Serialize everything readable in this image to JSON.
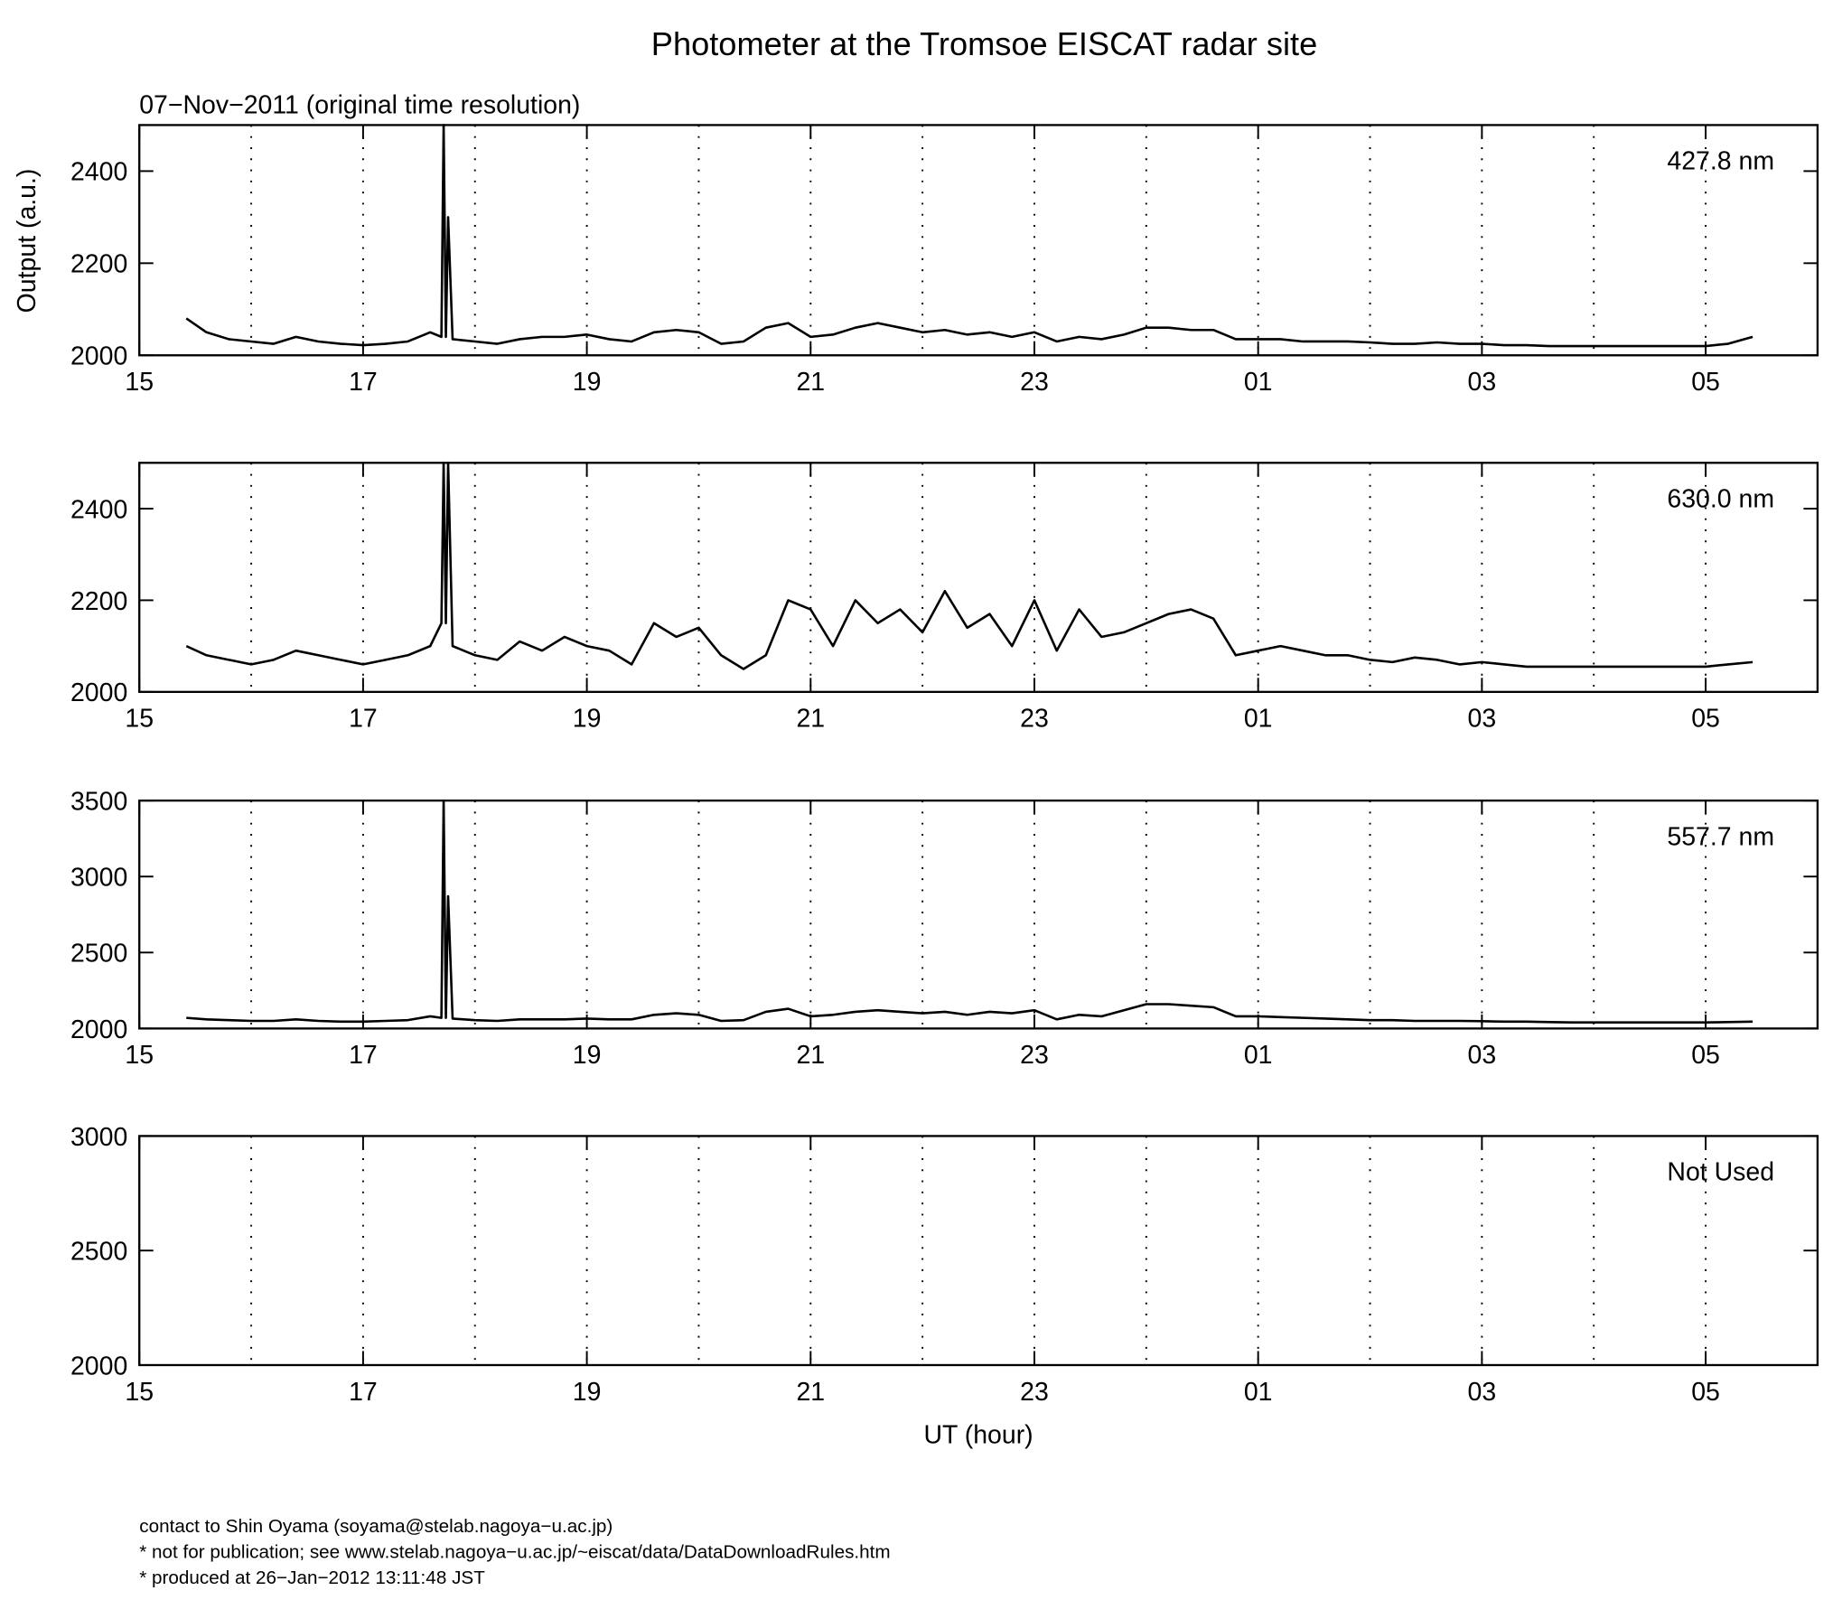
{
  "footer": [
    "contact to Shin Oyama (soyama@stelab.nagoya−u.ac.jp)",
    "* not for publication; see www.stelab.nagoya−u.ac.jp/~eiscat/data/DataDownloadRules.htm",
    "* produced at 26−Jan−2012 13:11:48 JST"
  ],
  "chart_data": [
    {
      "type": "line",
      "title": "Photometer at the Tromsoe EISCAT radar site",
      "subtitle": "07−Nov−2011 (original time resolution)",
      "ylabel": "Output (a.u.)",
      "annotation": "427.8 nm",
      "x": [
        15.42,
        15.6,
        15.8,
        16.0,
        16.2,
        16.4,
        16.6,
        16.8,
        17.0,
        17.2,
        17.4,
        17.6,
        17.7,
        17.72,
        17.74,
        17.76,
        17.8,
        18.0,
        18.2,
        18.4,
        18.6,
        18.8,
        19.0,
        19.2,
        19.4,
        19.6,
        19.8,
        20.0,
        20.2,
        20.4,
        20.6,
        20.8,
        21.0,
        21.2,
        21.4,
        21.6,
        21.8,
        22.0,
        22.2,
        22.4,
        22.6,
        22.8,
        23.0,
        23.2,
        23.4,
        23.6,
        23.8,
        24.0,
        24.2,
        24.4,
        24.6,
        24.8,
        25.0,
        25.2,
        25.4,
        25.6,
        25.8,
        26.0,
        26.2,
        26.4,
        26.6,
        26.8,
        27.0,
        27.2,
        27.4,
        27.6,
        27.8,
        28.0,
        28.2,
        28.4,
        28.6,
        28.8,
        29.0,
        29.2,
        29.42
      ],
      "series": [
        {
          "color": "#000000",
          "values": [
            2080,
            2050,
            2035,
            2030,
            2025,
            2040,
            2030,
            2025,
            2022,
            2025,
            2030,
            2050,
            2040,
            2500,
            2040,
            2300,
            2035,
            2030,
            2025,
            2035,
            2040,
            2040,
            2045,
            2035,
            2030,
            2050,
            2055,
            2050,
            2025,
            2030,
            2060,
            2070,
            2040,
            2045,
            2060,
            2070,
            2060,
            2050,
            2055,
            2045,
            2050,
            2040,
            2050,
            2030,
            2040,
            2035,
            2045,
            2060,
            2060,
            2055,
            2055,
            2035,
            2035,
            2035,
            2030,
            2030,
            2030,
            2028,
            2025,
            2025,
            2028,
            2025,
            2025,
            2022,
            2022,
            2020,
            2020,
            2020,
            2020,
            2020,
            2020,
            2020,
            2020,
            2025,
            2040
          ]
        }
      ],
      "xlim": [
        15,
        30
      ],
      "xticks": [
        15,
        17,
        19,
        21,
        23,
        {
          "value": 25,
          "label": "01"
        },
        {
          "value": 27,
          "label": "03"
        },
        {
          "value": 29,
          "label": "05"
        }
      ],
      "xgrid": [
        16,
        17,
        18,
        19,
        20,
        21,
        22,
        23,
        24,
        25,
        26,
        27,
        28,
        29
      ],
      "ylim": [
        2000,
        2500
      ],
      "yticks": [
        2000,
        2200,
        2400
      ]
    },
    {
      "type": "line",
      "annotation": "630.0 nm",
      "x": [
        15.42,
        15.6,
        15.8,
        16.0,
        16.2,
        16.4,
        16.6,
        16.8,
        17.0,
        17.2,
        17.4,
        17.6,
        17.7,
        17.72,
        17.74,
        17.76,
        17.8,
        18.0,
        18.2,
        18.4,
        18.6,
        18.8,
        19.0,
        19.2,
        19.4,
        19.6,
        19.8,
        20.0,
        20.2,
        20.4,
        20.6,
        20.8,
        21.0,
        21.2,
        21.4,
        21.6,
        21.8,
        22.0,
        22.2,
        22.4,
        22.6,
        22.8,
        23.0,
        23.2,
        23.4,
        23.6,
        23.8,
        24.0,
        24.2,
        24.4,
        24.6,
        24.8,
        25.0,
        25.2,
        25.4,
        25.6,
        25.8,
        26.0,
        26.2,
        26.4,
        26.6,
        26.8,
        27.0,
        27.2,
        27.4,
        27.6,
        27.8,
        28.0,
        28.2,
        28.4,
        28.6,
        28.8,
        29.0,
        29.2,
        29.42
      ],
      "series": [
        {
          "color": "#000000",
          "values": [
            2100,
            2080,
            2070,
            2060,
            2070,
            2090,
            2080,
            2070,
            2060,
            2070,
            2080,
            2100,
            2150,
            2500,
            2150,
            2500,
            2100,
            2080,
            2070,
            2110,
            2090,
            2120,
            2100,
            2090,
            2060,
            2150,
            2120,
            2140,
            2080,
            2050,
            2080,
            2200,
            2180,
            2100,
            2200,
            2150,
            2180,
            2130,
            2220,
            2140,
            2170,
            2100,
            2200,
            2090,
            2180,
            2120,
            2130,
            2150,
            2170,
            2180,
            2160,
            2080,
            2090,
            2100,
            2090,
            2080,
            2080,
            2070,
            2065,
            2075,
            2070,
            2060,
            2065,
            2060,
            2055,
            2055,
            2055,
            2055,
            2055,
            2055,
            2055,
            2055,
            2055,
            2060,
            2065
          ]
        }
      ],
      "xlim": [
        15,
        30
      ],
      "xticks": [
        15,
        17,
        19,
        21,
        23,
        {
          "value": 25,
          "label": "01"
        },
        {
          "value": 27,
          "label": "03"
        },
        {
          "value": 29,
          "label": "05"
        }
      ],
      "xgrid": [
        16,
        17,
        18,
        19,
        20,
        21,
        22,
        23,
        24,
        25,
        26,
        27,
        28,
        29
      ],
      "ylim": [
        2000,
        2500
      ],
      "yticks": [
        2000,
        2200,
        2400
      ]
    },
    {
      "type": "line",
      "annotation": "557.7 nm",
      "x": [
        15.42,
        15.6,
        15.8,
        16.0,
        16.2,
        16.4,
        16.6,
        16.8,
        17.0,
        17.2,
        17.4,
        17.6,
        17.7,
        17.72,
        17.74,
        17.76,
        17.8,
        18.0,
        18.2,
        18.4,
        18.6,
        18.8,
        19.0,
        19.2,
        19.4,
        19.6,
        19.8,
        20.0,
        20.2,
        20.4,
        20.6,
        20.8,
        21.0,
        21.2,
        21.4,
        21.6,
        21.8,
        22.0,
        22.2,
        22.4,
        22.6,
        22.8,
        23.0,
        23.2,
        23.4,
        23.6,
        23.8,
        24.0,
        24.2,
        24.4,
        24.6,
        24.8,
        25.0,
        25.2,
        25.4,
        25.6,
        25.8,
        26.0,
        26.2,
        26.4,
        26.6,
        26.8,
        27.0,
        27.2,
        27.4,
        27.6,
        27.8,
        28.0,
        28.2,
        28.4,
        28.6,
        28.8,
        29.0,
        29.2,
        29.42
      ],
      "series": [
        {
          "color": "#000000",
          "values": [
            2070,
            2060,
            2055,
            2050,
            2050,
            2060,
            2050,
            2045,
            2045,
            2050,
            2055,
            2080,
            2070,
            3500,
            2070,
            2870,
            2065,
            2055,
            2050,
            2060,
            2060,
            2060,
            2065,
            2060,
            2060,
            2090,
            2100,
            2090,
            2050,
            2055,
            2110,
            2130,
            2080,
            2090,
            2110,
            2120,
            2110,
            2100,
            2110,
            2090,
            2110,
            2100,
            2120,
            2060,
            2090,
            2080,
            2120,
            2160,
            2160,
            2150,
            2140,
            2080,
            2080,
            2075,
            2070,
            2065,
            2060,
            2055,
            2055,
            2050,
            2050,
            2050,
            2048,
            2045,
            2045,
            2042,
            2040,
            2040,
            2040,
            2040,
            2040,
            2040,
            2040,
            2042,
            2045
          ]
        }
      ],
      "xlim": [
        15,
        30
      ],
      "xticks": [
        15,
        17,
        19,
        21,
        23,
        {
          "value": 25,
          "label": "01"
        },
        {
          "value": 27,
          "label": "03"
        },
        {
          "value": 29,
          "label": "05"
        }
      ],
      "xgrid": [
        16,
        17,
        18,
        19,
        20,
        21,
        22,
        23,
        24,
        25,
        26,
        27,
        28,
        29
      ],
      "ylim": [
        2000,
        3500
      ],
      "yticks": [
        2000,
        2500,
        3000,
        3500
      ]
    },
    {
      "type": "line",
      "annotation": "Not Used",
      "xlabel": "UT (hour)",
      "series": [],
      "xlim": [
        15,
        30
      ],
      "xticks": [
        15,
        17,
        19,
        21,
        23,
        {
          "value": 25,
          "label": "01"
        },
        {
          "value": 27,
          "label": "03"
        },
        {
          "value": 29,
          "label": "05"
        }
      ],
      "xgrid": [
        16,
        17,
        18,
        19,
        20,
        21,
        22,
        23,
        24,
        25,
        26,
        27,
        28,
        29
      ],
      "ylim": [
        2000,
        3000
      ],
      "yticks": [
        2000,
        2500,
        3000
      ]
    }
  ]
}
